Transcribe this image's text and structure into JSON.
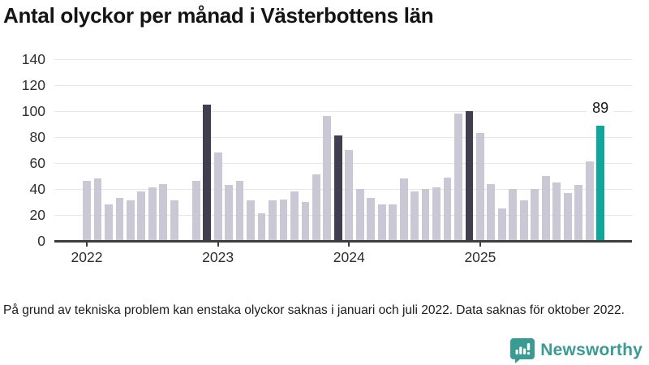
{
  "chart_data": {
    "type": "bar",
    "title": "Antal olyckor per månad i Västerbottens län",
    "xlabel": "",
    "ylabel": "",
    "y_ticks": [
      0,
      20,
      40,
      60,
      80,
      100,
      120,
      140
    ],
    "ylim": [
      0,
      145
    ],
    "x_tick_labels": [
      "2022",
      "2023",
      "2024",
      "2025"
    ],
    "grid": "horizontal",
    "series": [
      {
        "year": 2022,
        "values": [
          46,
          48,
          28,
          33,
          31,
          38,
          41,
          44,
          31,
          null,
          46,
          105
        ]
      },
      {
        "year": 2023,
        "values": [
          68,
          43,
          46,
          31,
          21,
          31,
          32,
          38,
          30,
          51,
          96,
          81
        ]
      },
      {
        "year": 2024,
        "values": [
          70,
          40,
          33,
          28,
          28,
          48,
          38,
          40,
          41,
          49,
          98,
          100
        ]
      },
      {
        "year": 2025,
        "values": [
          83,
          44,
          25,
          40,
          31,
          40,
          50,
          45,
          37,
          43,
          61,
          89
        ]
      }
    ],
    "highlight": {
      "dark_months": [
        "2022-12",
        "2023-12",
        "2024-12"
      ],
      "current_month": "2025-12"
    },
    "annotation": {
      "label": "89",
      "month": "2025-12"
    },
    "missing_months": [
      "2022-10"
    ],
    "colors": {
      "default": "#c9c8d4",
      "dark": "#403e4f",
      "current": "#0fa79d",
      "axis": "#3d3d3d",
      "gridline": "#e7e7e9"
    }
  },
  "footer": {
    "note": "På grund av tekniska problem kan enstaka olyckor saknas i januari och juli 2022. Data saknas för oktober 2022.",
    "brand": "Newsworthy",
    "brand_color": "#3a9b94"
  }
}
